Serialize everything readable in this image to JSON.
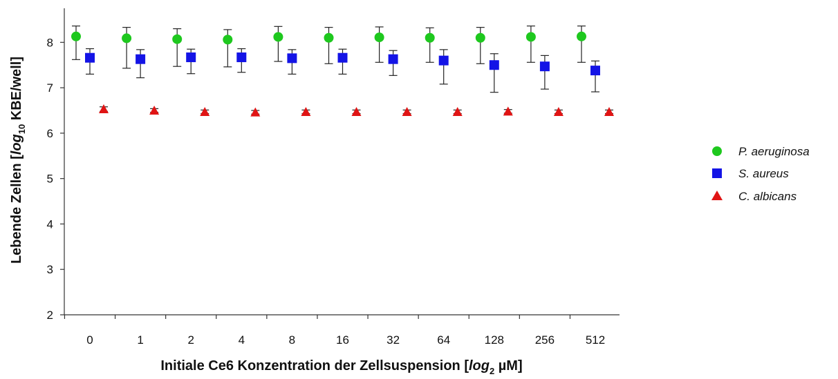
{
  "chart_data": {
    "type": "scatter",
    "x_axis": {
      "label_parts": [
        "Initiale Ce6 Konzentration der Zellsuspension [",
        "log",
        "2",
        " µM]"
      ],
      "categories": [
        "0",
        "1",
        "2",
        "4",
        "8",
        "16",
        "32",
        "64",
        "128",
        "256",
        "512"
      ]
    },
    "y_axis": {
      "label_parts": [
        "Lebende Zellen [",
        "log",
        "10",
        " KBE/well]"
      ],
      "ylim": [
        2,
        8.75
      ],
      "ticks": [
        "2",
        "3",
        "4",
        "5",
        "6",
        "7",
        "8"
      ]
    },
    "grid": false,
    "legend_position": "right",
    "series": [
      {
        "name": "P. aeruginosa",
        "marker": "circle",
        "color": "#1ec81e",
        "values": [
          8.13,
          8.09,
          8.07,
          8.06,
          8.12,
          8.1,
          8.11,
          8.1,
          8.1,
          8.12,
          8.13
        ],
        "error_upper": [
          8.36,
          8.33,
          8.3,
          8.28,
          8.35,
          8.33,
          8.34,
          8.32,
          8.33,
          8.36,
          8.36
        ],
        "error_lower": [
          7.62,
          7.43,
          7.47,
          7.46,
          7.58,
          7.53,
          7.56,
          7.56,
          7.53,
          7.56,
          7.56
        ]
      },
      {
        "name": "S. aureus",
        "marker": "square",
        "color": "#1414e6",
        "values": [
          7.66,
          7.63,
          7.67,
          7.67,
          7.65,
          7.66,
          7.63,
          7.6,
          7.5,
          7.47,
          7.38
        ],
        "error_upper": [
          7.86,
          7.84,
          7.85,
          7.86,
          7.84,
          7.85,
          7.82,
          7.84,
          7.75,
          7.71,
          7.59
        ],
        "error_lower": [
          7.3,
          7.22,
          7.31,
          7.34,
          7.3,
          7.3,
          7.27,
          7.08,
          6.9,
          6.97,
          6.91
        ]
      },
      {
        "name": "C. albicans",
        "marker": "triangle",
        "color": "#e01414",
        "values": [
          6.53,
          6.5,
          6.47,
          6.46,
          6.47,
          6.47,
          6.47,
          6.47,
          6.48,
          6.47,
          6.47
        ],
        "error_upper": [
          6.58,
          6.54,
          6.51,
          6.5,
          6.51,
          6.51,
          6.51,
          6.51,
          6.52,
          6.51,
          6.51
        ],
        "error_lower": [
          6.48,
          6.46,
          6.43,
          6.42,
          6.43,
          6.43,
          6.43,
          6.43,
          6.44,
          6.43,
          6.43
        ]
      }
    ]
  }
}
